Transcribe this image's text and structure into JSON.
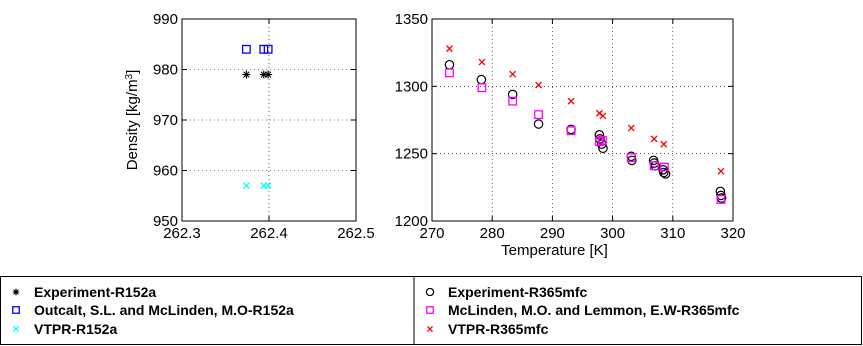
{
  "chart_data": [
    {
      "type": "scatter",
      "panel": "left",
      "ylabel_parts": [
        "Density [kg/m",
        "3",
        "]"
      ],
      "xlim": [
        262.3,
        262.5
      ],
      "ylim": [
        950,
        990
      ],
      "xticks": [
        "262.3",
        "262.4",
        "262.5"
      ],
      "yticks": [
        "950",
        "960",
        "970",
        "980",
        "990"
      ],
      "grid": true,
      "series": [
        {
          "name": "Experiment-R152a",
          "marker": "star",
          "color": "#000000",
          "x": [
            262.374,
            262.394,
            262.399
          ],
          "y": [
            979,
            979,
            979
          ]
        },
        {
          "name": "Outcalt, S.L. and McLinden, M.O-R152a",
          "marker": "square",
          "color": "#0000ff",
          "x": [
            262.374,
            262.394,
            262.399
          ],
          "y": [
            984,
            984,
            984
          ]
        },
        {
          "name": "VTPR-R152a",
          "marker": "x",
          "color": "#00ffff",
          "x": [
            262.374,
            262.394,
            262.399
          ],
          "y": [
            957,
            957,
            957
          ]
        }
      ]
    },
    {
      "type": "scatter",
      "panel": "right",
      "xlabel": "Temperature [K]",
      "xlim": [
        270,
        320
      ],
      "ylim": [
        1200,
        1350
      ],
      "xticks": [
        "270",
        "280",
        "290",
        "300",
        "310",
        "320"
      ],
      "yticks": [
        "1200",
        "1250",
        "1300",
        "1350"
      ],
      "grid": true,
      "series": [
        {
          "name": "Experiment-R365mfc",
          "marker": "circle",
          "color": "#000000",
          "x": [
            272.9,
            278.2,
            283.4,
            287.7,
            293.1,
            297.8,
            297.9,
            298.2,
            298.4,
            303.1,
            303.2,
            306.8,
            306.9,
            307.1,
            308.4,
            308.5,
            308.8,
            317.9,
            318.0,
            318.1
          ],
          "y": [
            1316,
            1305,
            1294,
            1272,
            1268,
            1264,
            1261,
            1257,
            1254,
            1248,
            1245,
            1245,
            1243,
            1241,
            1238,
            1236,
            1235,
            1222,
            1219,
            1217
          ]
        },
        {
          "name": "McLinden, M.O. and Lemmon, E.W-R365mfc",
          "marker": "square",
          "color": "#ff00ff",
          "x": [
            272.9,
            278.3,
            283.4,
            287.7,
            293.1,
            297.8,
            298.3,
            303.1,
            306.9,
            308.6,
            318.0
          ],
          "y": [
            1310,
            1299,
            1289,
            1279,
            1267,
            1259,
            1260,
            1247,
            1241,
            1240,
            1216
          ]
        },
        {
          "name": "VTPR-R365mfc",
          "marker": "x",
          "color": "#ff0000",
          "x": [
            272.9,
            278.3,
            283.4,
            287.7,
            293.1,
            297.8,
            298.4,
            303.1,
            306.9,
            308.5,
            318.0
          ],
          "y": [
            1328,
            1318,
            1309,
            1301,
            1289,
            1280,
            1278,
            1269,
            1261,
            1257,
            1237
          ]
        }
      ]
    }
  ],
  "legend": {
    "columns": [
      [
        "Experiment-R152a",
        "Outcalt, S.L. and McLinden, M.O-R152a",
        "VTPR-R152a"
      ],
      [
        "Experiment-R365mfc",
        "McLinden, M.O. and Lemmon, E.W-R365mfc",
        "VTPR-R365mfc"
      ]
    ]
  }
}
